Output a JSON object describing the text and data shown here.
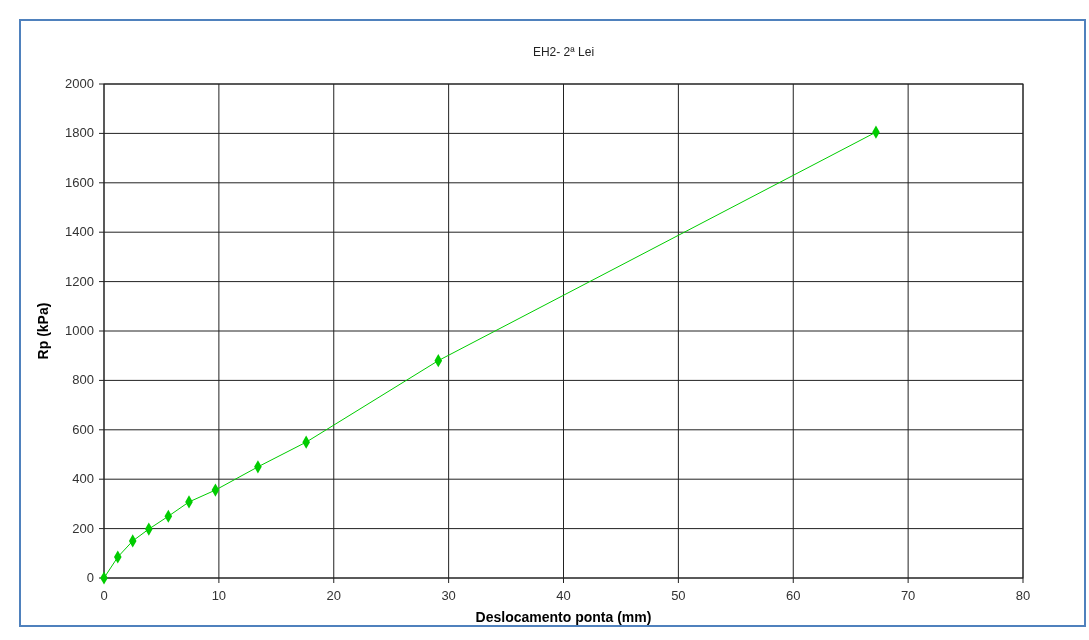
{
  "chart_data": {
    "type": "line",
    "title": "EH2- 2ª Lei",
    "xlabel": "Deslocamento ponta (mm)",
    "ylabel": "Rp (kPa)",
    "series": [
      {
        "color": "#00cc00",
        "x": [
          0,
          1.2,
          2.5,
          3.9,
          5.6,
          7.4,
          9.7,
          13.4,
          17.6,
          29.1,
          67.2
        ],
        "values": [
          0,
          85,
          150,
          198,
          250,
          308,
          356,
          450,
          550,
          880,
          1805
        ]
      }
    ],
    "xlim": [
      0,
      80
    ],
    "xticks": [
      0,
      10,
      20,
      30,
      40,
      50,
      60,
      70,
      80
    ],
    "ylim": [
      0,
      2000
    ],
    "yticks": [
      0,
      200,
      400,
      600,
      800,
      1000,
      1200,
      1400,
      1600,
      1800,
      2000
    ],
    "grid": true,
    "marker": "diamond",
    "line_style": "solid"
  }
}
